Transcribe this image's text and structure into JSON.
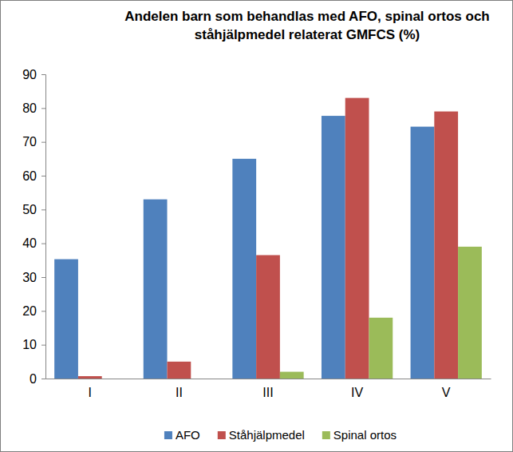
{
  "chart_data": {
    "type": "bar",
    "title": "Andelen barn som behandlas med AFO, spinal ortos och ståhjälpmedel relaterat GMFCS (%)",
    "categories": [
      "I",
      "II",
      "III",
      "IV",
      "V"
    ],
    "series": [
      {
        "name": "AFO",
        "color": "#4f81bd",
        "values": [
          35.3,
          53,
          65,
          77.7,
          74.5
        ]
      },
      {
        "name": "Ståhjälpmedel",
        "color": "#c0504d",
        "values": [
          0.7,
          5,
          36.5,
          83,
          79
        ]
      },
      {
        "name": "Spinal ortos",
        "color": "#9bbb59",
        "values": [
          0,
          0,
          2,
          18,
          39
        ]
      }
    ],
    "ylim": [
      0,
      90
    ],
    "yticks": [
      0,
      10,
      20,
      30,
      40,
      50,
      60,
      70,
      80,
      90
    ],
    "grid": false,
    "legend": "bottom"
  }
}
